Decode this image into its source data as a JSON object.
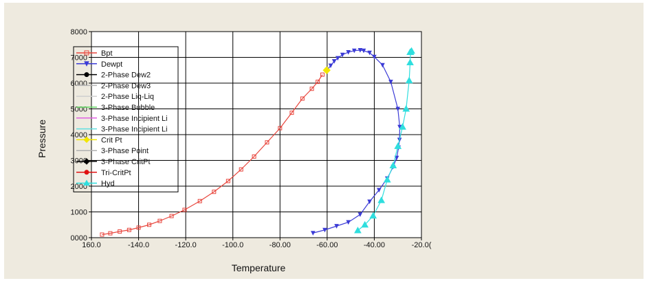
{
  "chart_data": {
    "type": "line",
    "xlabel": "Temperature",
    "ylabel": "Pressure",
    "xlim": [
      -160,
      -20
    ],
    "ylim": [
      0,
      8000
    ],
    "x_ticks": [
      -160,
      -140,
      -120,
      -100,
      -80,
      -60,
      -40,
      -20
    ],
    "x_tick_labels": [
      "160.0",
      "-140.0",
      "-120.0",
      "-100.0",
      "-80.00",
      "-60.00",
      "-40.00",
      "-20.0("
    ],
    "y_ticks": [
      0,
      1000,
      2000,
      3000,
      4000,
      5000,
      6000,
      7000,
      8000
    ],
    "y_tick_labels": [
      "0000",
      "1000",
      "2000",
      "3000",
      "4000",
      "5000",
      "6000",
      "7000",
      "8000"
    ],
    "grid": true,
    "legend_position": "upper-left",
    "legend": [
      {
        "name": "Bpt",
        "color": "#e8453c",
        "marker": "square"
      },
      {
        "name": "Dewpt",
        "color": "#3b3bd6",
        "marker": "triangle-down"
      },
      {
        "name": "2-Phase Dew2",
        "color": "#000000",
        "marker": "circle"
      },
      {
        "name": "2-Phase Dew3",
        "color": "#b4b4b4",
        "marker": "none"
      },
      {
        "name": "2-Phase Liq-Liq",
        "color": "#cfcfcf",
        "marker": "none"
      },
      {
        "name": "3-Phase Bubble",
        "color": "#5fd35f",
        "marker": "none"
      },
      {
        "name": "3-Phase Incipient Li",
        "color": "#e060e0",
        "marker": "none"
      },
      {
        "name": "3-Phase Incipient Li",
        "color": "#5fe0e0",
        "marker": "none"
      },
      {
        "name": "Crit Pt",
        "color": "#f2e600",
        "marker": "diamond"
      },
      {
        "name": "3-Phase Point",
        "color": "#b0b0b0",
        "marker": "none"
      },
      {
        "name": "3-Phase CritPt",
        "color": "#000000",
        "marker": "diamond"
      },
      {
        "name": "Tri-CritPt",
        "color": "#e01010",
        "marker": "circle"
      },
      {
        "name": "Hyd",
        "color": "#2fdede",
        "marker": "triangle-up"
      }
    ],
    "series": [
      {
        "name": "Bpt",
        "color": "#e8453c",
        "x": [
          -155.5,
          -152,
          -148,
          -144,
          -140,
          -135.5,
          -131,
          -126,
          -120.5,
          -114,
          -108,
          -102,
          -96.5,
          -91,
          -85.5,
          -80,
          -75,
          -70.5,
          -66.5,
          -64,
          -62
        ],
        "y": [
          120,
          170,
          240,
          300,
          390,
          500,
          650,
          840,
          1080,
          1420,
          1780,
          2200,
          2650,
          3150,
          3700,
          4250,
          4850,
          5400,
          5780,
          6050,
          6330
        ]
      },
      {
        "name": "Dewpt",
        "color": "#3b3bd6",
        "x": [
          -60,
          -58.5,
          -57,
          -55.5,
          -53.5,
          -51,
          -48.5,
          -46,
          -44.5,
          -42,
          -40,
          -36.5,
          -33,
          -30,
          -29.2,
          -29.3,
          -29.7,
          -30.5,
          -32,
          -34.5,
          -38,
          -42,
          -46,
          -51,
          -56,
          -61,
          -66
        ],
        "y": [
          6520,
          6680,
          6850,
          6970,
          7100,
          7200,
          7260,
          7280,
          7260,
          7180,
          7020,
          6700,
          6050,
          5000,
          4300,
          3800,
          3500,
          3100,
          2750,
          2300,
          1850,
          1400,
          900,
          600,
          450,
          300,
          180
        ]
      },
      {
        "name": "Hyd",
        "color": "#2fdede",
        "x": [
          -47,
          -44,
          -40.5,
          -37,
          -34.5,
          -32,
          -30,
          -28,
          -26.5,
          -25.2,
          -24.8,
          -24.6,
          -24.8,
          -24.2
        ],
        "y": [
          280,
          500,
          850,
          1450,
          2250,
          2800,
          3550,
          4300,
          5000,
          6100,
          6800,
          7200,
          7200,
          7250
        ]
      },
      {
        "name": "Crit Pt",
        "color": "#f2e600",
        "x": [
          -60.2
        ],
        "y": [
          6500
        ]
      }
    ]
  }
}
